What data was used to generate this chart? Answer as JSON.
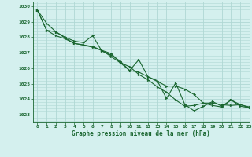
{
  "title": "Graphe pression niveau de la mer (hPa)",
  "background_color": "#d4f0ee",
  "grid_color": "#b0d8d4",
  "line_color": "#1a6630",
  "xlim": [
    -0.5,
    23
  ],
  "ylim": [
    1022.5,
    1030.3
  ],
  "yticks": [
    1023,
    1024,
    1025,
    1026,
    1027,
    1028,
    1029,
    1030
  ],
  "xticks": [
    0,
    1,
    2,
    3,
    4,
    5,
    6,
    7,
    8,
    9,
    10,
    11,
    12,
    13,
    14,
    15,
    16,
    17,
    18,
    19,
    20,
    21,
    22,
    23
  ],
  "series1_x": [
    0,
    1,
    2,
    3,
    4,
    5,
    6,
    7,
    8,
    9,
    10,
    11,
    12,
    13,
    14,
    15,
    16,
    17,
    18,
    19,
    20,
    21,
    22,
    23
  ],
  "series1_y": [
    1029.75,
    1028.9,
    1028.35,
    1028.0,
    1027.75,
    1027.65,
    1028.1,
    1027.1,
    1026.85,
    1026.45,
    1025.85,
    1026.55,
    1025.45,
    1025.2,
    1024.05,
    1025.05,
    1023.65,
    1023.25,
    1023.55,
    1023.85,
    1023.55,
    1023.95,
    1023.55,
    1023.45
  ],
  "series2_x": [
    0,
    1,
    2,
    3,
    4,
    5,
    6,
    7,
    8,
    9,
    10,
    11,
    12,
    13,
    14,
    15,
    16,
    17,
    18,
    19,
    20,
    21,
    22,
    23
  ],
  "series2_y": [
    1029.75,
    1028.45,
    1028.1,
    1027.9,
    1027.6,
    1027.5,
    1027.4,
    1027.15,
    1026.75,
    1026.35,
    1025.85,
    1025.75,
    1025.45,
    1025.15,
    1024.85,
    1024.85,
    1024.65,
    1024.3,
    1023.75,
    1023.75,
    1023.65,
    1023.6,
    1023.65,
    1023.45
  ],
  "series3_x": [
    0,
    1,
    2,
    3,
    4,
    5,
    6,
    7,
    8,
    9,
    10,
    11,
    12,
    13,
    14,
    15,
    16,
    17,
    18,
    19,
    20,
    21,
    22,
    23
  ],
  "series3_y": [
    1029.75,
    1028.45,
    1028.35,
    1027.95,
    1027.6,
    1027.5,
    1027.35,
    1027.15,
    1026.95,
    1026.35,
    1026.1,
    1025.6,
    1025.25,
    1024.8,
    1024.45,
    1023.95,
    1023.55,
    1023.6,
    1023.75,
    1023.6,
    1023.5,
    1023.95,
    1023.65,
    1023.5
  ]
}
